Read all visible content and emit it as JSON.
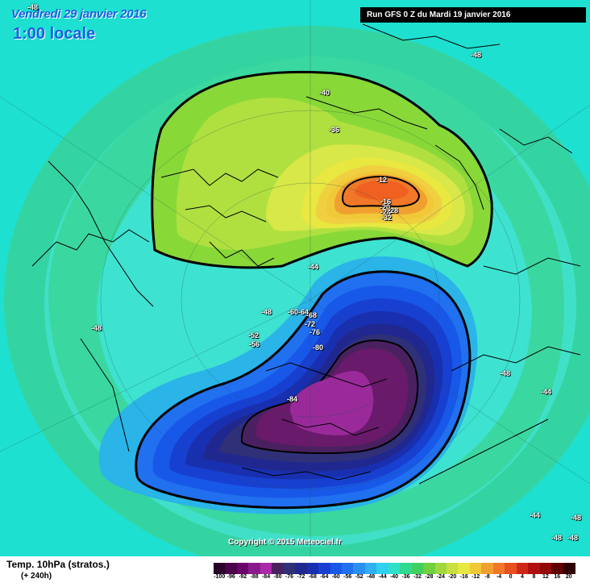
{
  "header": {
    "date": "Vendredi 29 janvier 2016",
    "time": "1:00 locale",
    "run": "Run GFS 0 Z du Mardi 19 janvier 2016"
  },
  "copyright": "Copyright © 2015 Meteociel.fr",
  "footer": {
    "parameter": "Temp. 10hPa (stratos.)",
    "horizon": "(+ 240h)"
  },
  "colors": {
    "background": "#1ee0d0",
    "outer_ring": "#34d4a2",
    "ring_m48": "#40e0c8",
    "ring_m44": "#48d070",
    "warm_m40": "#88d838",
    "warm_m36": "#b0e040",
    "warm_m32": "#d8e848",
    "cold_m52": "#2ab4e8",
    "cold_m84": "#8a1a8a"
  },
  "scale": {
    "values": [
      "-100",
      "-96",
      "-92",
      "-88",
      "-84",
      "-80",
      "-76",
      "-72",
      "-68",
      "-64",
      "-60",
      "-56",
      "-52",
      "-48",
      "-44",
      "-40",
      "-36",
      "-32",
      "-28",
      "-24",
      "-20",
      "-16",
      "-12",
      "-8",
      "-4",
      "0",
      "4",
      "8",
      "12",
      "16",
      "20"
    ],
    "colors": [
      "#2a002a",
      "#4a004a",
      "#6a006a",
      "#8a1a8a",
      "#aa2aaa",
      "#4a2060",
      "#303078",
      "#202890",
      "#1830b0",
      "#1840d0",
      "#1858e8",
      "#2070f0",
      "#2a90f0",
      "#30b0f0",
      "#30d0f0",
      "#30e0c8",
      "#30d890",
      "#40d060",
      "#70d040",
      "#a0d840",
      "#c8e040",
      "#e8e840",
      "#f0c838",
      "#f0a030",
      "#f07828",
      "#e85020",
      "#d02818",
      "#b01010",
      "#900808",
      "#600000",
      "#300000"
    ]
  },
  "contour_labels": [
    {
      "id": "m48-tl",
      "text": "-48"
    },
    {
      "id": "m40-top",
      "text": "-40"
    },
    {
      "id": "m36-top",
      "text": "-36"
    },
    {
      "id": "m12",
      "text": "-12"
    },
    {
      "id": "m16",
      "text": "-16"
    },
    {
      "id": "m20",
      "text": "-20"
    },
    {
      "id": "m24",
      "text": "-24"
    },
    {
      "id": "m28",
      "text": "-28"
    },
    {
      "id": "m32",
      "text": "-32"
    },
    {
      "id": "m44-mid",
      "text": "-44"
    },
    {
      "id": "m48-mid",
      "text": "-48"
    },
    {
      "id": "m60",
      "text": "-60"
    },
    {
      "id": "m64",
      "text": "-64"
    },
    {
      "id": "m68",
      "text": "-68"
    },
    {
      "id": "m72",
      "text": "-72"
    },
    {
      "id": "m76",
      "text": "-76"
    },
    {
      "id": "m80",
      "text": "-80"
    },
    {
      "id": "m84",
      "text": "-84"
    },
    {
      "id": "m52",
      "text": "-52"
    },
    {
      "id": "m56",
      "text": "-56"
    },
    {
      "id": "m48-left",
      "text": "-48"
    },
    {
      "id": "m48-right",
      "text": "-48"
    },
    {
      "id": "m48-topright",
      "text": "-48"
    },
    {
      "id": "m44-right",
      "text": "-44"
    },
    {
      "id": "m44-bottom",
      "text": "-44"
    },
    {
      "id": "m48-br1",
      "text": "-48"
    },
    {
      "id": "m48-br2",
      "text": "-48"
    },
    {
      "id": "m48-br3",
      "text": "-48"
    }
  ]
}
